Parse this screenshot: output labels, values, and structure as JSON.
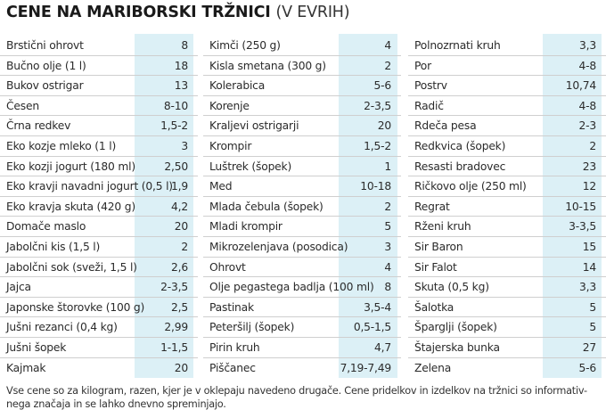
{
  "header": {
    "title": "CENE NA MARIBORSKI TRŽNICI",
    "subtitle": "(V EVRIH)"
  },
  "columns": [
    {
      "rows": [
        {
          "name": "Brstični ohrovt",
          "price": "8"
        },
        {
          "name": "Bučno olje (1 l)",
          "price": "18"
        },
        {
          "name": "Bukov ostrigar",
          "price": "13"
        },
        {
          "name": "Česen",
          "price": "8-10"
        },
        {
          "name": "Črna redkev",
          "price": "1,5-2"
        },
        {
          "name": "Eko kozje mleko (1 l)",
          "price": "3"
        },
        {
          "name": "Eko kozji jogurt (180 ml)",
          "price": "2,50"
        },
        {
          "name": "Eko kravji navadni jogurt (0,5 l)",
          "price": "1,9"
        },
        {
          "name": "Eko kravja skuta (420 g)",
          "price": "4,2"
        },
        {
          "name": "Domače maslo",
          "price": "20"
        },
        {
          "name": "Jabolčni kis (1,5 l)",
          "price": "2"
        },
        {
          "name": "Jabolčni sok (sveži, 1,5 l)",
          "price": "2,6"
        },
        {
          "name": "Jajca",
          "price": "2-3,5"
        },
        {
          "name": "Japonske štorovke (100 g)",
          "price": "2,5"
        },
        {
          "name": "Jušni rezanci (0,4 kg)",
          "price": "2,99"
        },
        {
          "name": "Jušni šopek",
          "price": "1-1,5"
        },
        {
          "name": "Kajmak",
          "price": "20"
        }
      ]
    },
    {
      "rows": [
        {
          "name": "Kimči (250 g)",
          "price": "4"
        },
        {
          "name": "Kisla smetana (300 g)",
          "price": "2"
        },
        {
          "name": "Kolerabica",
          "price": "5-6"
        },
        {
          "name": "Korenje",
          "price": "2-3,5"
        },
        {
          "name": "Kraljevi ostrigarji",
          "price": "20"
        },
        {
          "name": "Krompir",
          "price": "1,5-2"
        },
        {
          "name": "Luštrek (šopek)",
          "price": "1"
        },
        {
          "name": "Med",
          "price": "10-18"
        },
        {
          "name": "Mlada čebula (šopek)",
          "price": "2"
        },
        {
          "name": "Mladi krompir",
          "price": "5"
        },
        {
          "name": "Mikrozelenjava (posodica)",
          "price": "3"
        },
        {
          "name": "Ohrovt",
          "price": "4"
        },
        {
          "name": "Olje pegastega badlja (100 ml)",
          "price": "8"
        },
        {
          "name": "Pastinak",
          "price": "3,5-4"
        },
        {
          "name": "Peteršilj (šopek)",
          "price": "0,5-1,5"
        },
        {
          "name": "Pirin kruh",
          "price": "4,7"
        },
        {
          "name": "Piščanec",
          "price": "7,19-7,49"
        }
      ]
    },
    {
      "rows": [
        {
          "name": "Polnozrnati kruh",
          "price": "3,3"
        },
        {
          "name": "Por",
          "price": "4-8"
        },
        {
          "name": "Postrv",
          "price": "10,74"
        },
        {
          "name": "Radič",
          "price": "4-8"
        },
        {
          "name": "Rdeča pesa",
          "price": "2-3"
        },
        {
          "name": "Redkvica (šopek)",
          "price": "2"
        },
        {
          "name": "Resasti bradovec",
          "price": "23"
        },
        {
          "name": "Ričkovo olje (250 ml)",
          "price": "12"
        },
        {
          "name": "Regrat",
          "price": "10-15"
        },
        {
          "name": "Rženi kruh",
          "price": "3-3,5"
        },
        {
          "name": "Sir Baron",
          "price": "15"
        },
        {
          "name": "Sir Falot",
          "price": "14"
        },
        {
          "name": "Skuta (0,5 kg)",
          "price": "3,3"
        },
        {
          "name": "Šalotka",
          "price": "5"
        },
        {
          "name": "Špargljі (šopek)",
          "price": "5"
        },
        {
          "name": "Štajerska bunka",
          "price": "27"
        },
        {
          "name": "Zelena",
          "price": "5-6"
        }
      ]
    }
  ],
  "footer": {
    "note": "Vse cene so za kilogram, razen, kjer je v oklepaju navedeno drugače. Cene pridelkov in izdelkov na tržnici so informativ-nega značaja in se lahko dnevno spreminjajo."
  },
  "colors": {
    "price_band": "#dcf0f6",
    "row_divider": "#cfcfcf",
    "title": "#1a1a1a"
  }
}
